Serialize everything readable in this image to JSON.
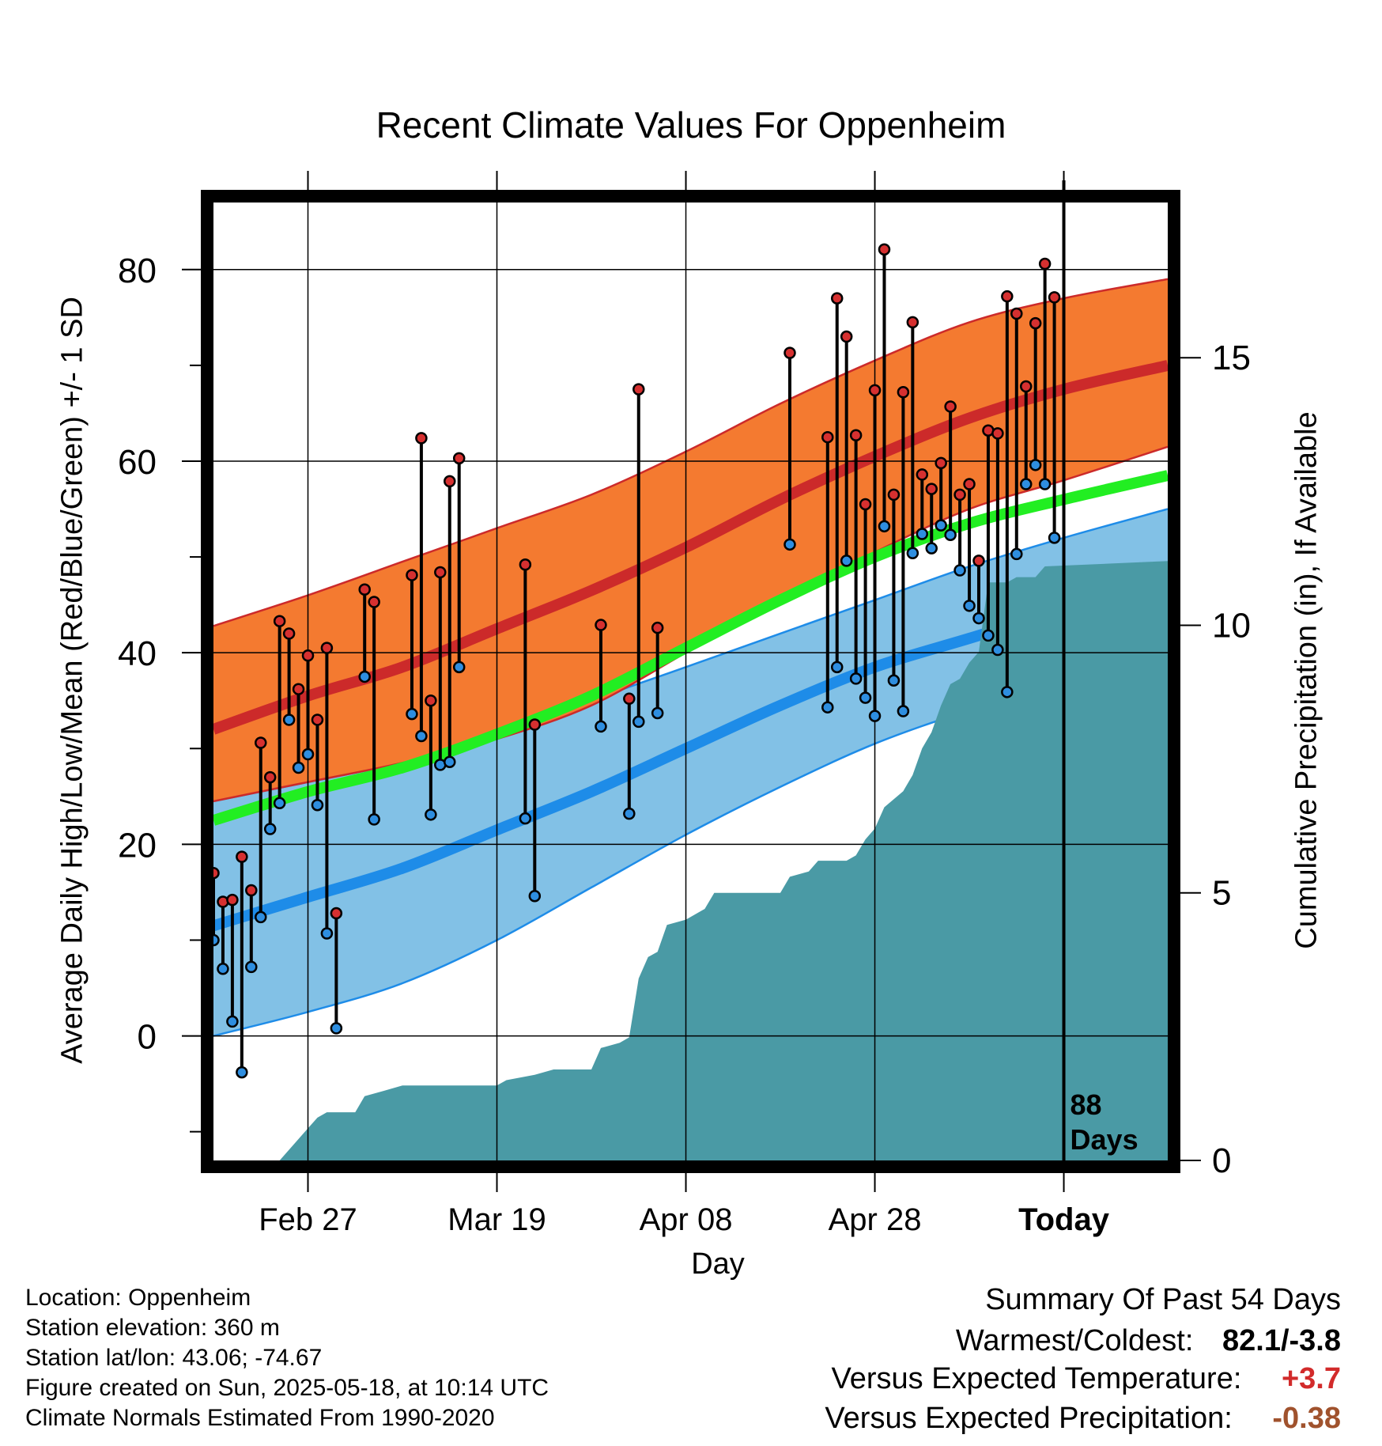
{
  "chart_data": {
    "type": "line",
    "title": "Recent Climate Values For Oppenheim",
    "xlabel": "Day",
    "ylabel": "Average Daily High/Low/Mean (Red/Blue/Green) +/- 1 SD",
    "y2label": "Cumulative Precipitation (in), If Available",
    "x_start_day": 0,
    "x_end_day": 101,
    "ylim": [
      -13,
      87
    ],
    "y2lim": [
      0,
      17.9
    ],
    "grid": true,
    "x_ticks": [
      {
        "day": 10,
        "label": "Feb 27"
      },
      {
        "day": 30,
        "label": "Mar 19"
      },
      {
        "day": 50,
        "label": "Apr 08"
      },
      {
        "day": 70,
        "label": "Apr 28"
      },
      {
        "day": 90,
        "label": "Today"
      }
    ],
    "y_ticks": [
      0,
      20,
      40,
      60,
      80
    ],
    "y_minor_ticks": [
      -10,
      10,
      30,
      50,
      70
    ],
    "y2_ticks": [
      0,
      5,
      10,
      15
    ],
    "today_day": 90,
    "today_label": [
      "88",
      "Days"
    ],
    "normals": {
      "days": [
        0,
        10,
        20,
        30,
        40,
        50,
        60,
        70,
        80,
        90,
        101
      ],
      "high_mean": [
        32,
        35.5,
        38.5,
        42.5,
        46.5,
        51,
        56,
        60.5,
        64.5,
        67.5,
        70
      ],
      "high_upper": [
        42.8,
        46,
        49.5,
        53,
        56.5,
        61,
        66,
        70.5,
        74.5,
        77,
        79
      ],
      "high_lower": [
        24.5,
        26.5,
        28.5,
        31,
        34.5,
        40,
        45.5,
        50.5,
        55,
        58,
        61.5
      ],
      "avg_mean": [
        22.5,
        25.5,
        28,
        31.5,
        35.5,
        40.5,
        45.5,
        50,
        53.5,
        56,
        58.5
      ],
      "low_mean": [
        11.5,
        14.5,
        17.5,
        21.5,
        25.5,
        30,
        34.5,
        38.5,
        41.5,
        44.5,
        47
      ],
      "low_upper": [
        24.5,
        26.5,
        28.5,
        31,
        35,
        38.5,
        42,
        45.5,
        49,
        52,
        55
      ],
      "low_lower": [
        0,
        2.5,
        5.5,
        10,
        15.5,
        21,
        26,
        30.5,
        34,
        37,
        40.5
      ]
    },
    "series": [
      {
        "name": "High",
        "points": [
          [
            0,
            17
          ],
          [
            1,
            14
          ],
          [
            2,
            14.2
          ],
          [
            3,
            18.7
          ],
          [
            4,
            15.2
          ],
          [
            5,
            30.6
          ],
          [
            6,
            27
          ],
          [
            7,
            43.3
          ],
          [
            8,
            42
          ],
          [
            9,
            36.2
          ],
          [
            10,
            39.7
          ],
          [
            11,
            33
          ],
          [
            12,
            40.5
          ],
          [
            13,
            12.8
          ],
          [
            16,
            46.6
          ],
          [
            17,
            45.3
          ],
          [
            21,
            48.1
          ],
          [
            22,
            62.4
          ],
          [
            23,
            35
          ],
          [
            24,
            48.4
          ],
          [
            25,
            57.9
          ],
          [
            26,
            60.3
          ],
          [
            33,
            49.2
          ],
          [
            34,
            32.5
          ],
          [
            41,
            42.9
          ],
          [
            44,
            35.2
          ],
          [
            45,
            67.5
          ],
          [
            47,
            42.6
          ],
          [
            61,
            71.3
          ],
          [
            65,
            62.5
          ],
          [
            66,
            77
          ],
          [
            67,
            73
          ],
          [
            68,
            62.7
          ],
          [
            69,
            55.5
          ],
          [
            70,
            67.4
          ],
          [
            71,
            82.1
          ],
          [
            72,
            56.5
          ],
          [
            73,
            67.2
          ],
          [
            74,
            74.5
          ],
          [
            75,
            58.6
          ],
          [
            76,
            57.1
          ],
          [
            77,
            59.8
          ],
          [
            78,
            65.7
          ],
          [
            79,
            56.5
          ],
          [
            80,
            57.6
          ],
          [
            81,
            49.6
          ],
          [
            82,
            63.2
          ],
          [
            83,
            62.9
          ],
          [
            84,
            77.2
          ],
          [
            85,
            75.4
          ],
          [
            86,
            67.8
          ],
          [
            87,
            74.4
          ],
          [
            88,
            80.6
          ],
          [
            89,
            77.1
          ]
        ]
      },
      {
        "name": "Low",
        "points": [
          [
            0,
            10
          ],
          [
            1,
            7
          ],
          [
            2,
            1.5
          ],
          [
            3,
            -3.8
          ],
          [
            4,
            7.2
          ],
          [
            5,
            12.4
          ],
          [
            6,
            21.6
          ],
          [
            7,
            24.3
          ],
          [
            8,
            33
          ],
          [
            9,
            28
          ],
          [
            10,
            29.4
          ],
          [
            11,
            24.1
          ],
          [
            12,
            10.7
          ],
          [
            13,
            0.8
          ],
          [
            16,
            37.5
          ],
          [
            17,
            22.6
          ],
          [
            21,
            33.6
          ],
          [
            22,
            31.3
          ],
          [
            23,
            23.1
          ],
          [
            24,
            28.3
          ],
          [
            25,
            28.6
          ],
          [
            26,
            38.5
          ],
          [
            33,
            22.7
          ],
          [
            34,
            14.6
          ],
          [
            41,
            32.3
          ],
          [
            44,
            23.2
          ],
          [
            45,
            32.8
          ],
          [
            47,
            33.7
          ],
          [
            61,
            51.3
          ],
          [
            65,
            34.3
          ],
          [
            66,
            38.5
          ],
          [
            67,
            49.6
          ],
          [
            68,
            37.3
          ],
          [
            69,
            35.3
          ],
          [
            70,
            33.4
          ],
          [
            71,
            53.2
          ],
          [
            72,
            37.1
          ],
          [
            73,
            33.9
          ],
          [
            74,
            50.4
          ],
          [
            75,
            52.4
          ],
          [
            76,
            50.9
          ],
          [
            77,
            53.3
          ],
          [
            78,
            52.3
          ],
          [
            79,
            48.6
          ],
          [
            80,
            44.9
          ],
          [
            81,
            43.6
          ],
          [
            82,
            41.8
          ],
          [
            83,
            40.3
          ],
          [
            84,
            35.9
          ],
          [
            85,
            50.3
          ],
          [
            86,
            57.6
          ],
          [
            87,
            59.6
          ],
          [
            88,
            57.6
          ],
          [
            89,
            52
          ]
        ]
      },
      {
        "name": "Cumulative Precipitation",
        "points": [
          [
            0,
            0
          ],
          [
            7,
            0
          ],
          [
            8,
            0.2
          ],
          [
            9,
            0.4
          ],
          [
            10,
            0.6
          ],
          [
            11,
            0.8
          ],
          [
            12,
            0.9
          ],
          [
            15,
            0.9
          ],
          [
            16,
            1.2
          ],
          [
            18,
            1.3
          ],
          [
            20,
            1.4
          ],
          [
            30,
            1.4
          ],
          [
            31,
            1.5
          ],
          [
            34,
            1.6
          ],
          [
            36,
            1.7
          ],
          [
            40,
            1.7
          ],
          [
            41,
            2.1
          ],
          [
            43,
            2.2
          ],
          [
            44,
            2.3
          ],
          [
            45,
            3.4
          ],
          [
            46,
            3.8
          ],
          [
            47,
            3.9
          ],
          [
            48,
            4.4
          ],
          [
            50,
            4.5
          ],
          [
            52,
            4.7
          ],
          [
            53,
            5
          ],
          [
            56,
            5
          ],
          [
            58,
            5
          ],
          [
            60,
            5
          ],
          [
            61,
            5.3
          ],
          [
            63,
            5.4
          ],
          [
            64,
            5.6
          ],
          [
            67,
            5.6
          ],
          [
            68,
            5.7
          ],
          [
            69,
            6
          ],
          [
            70,
            6.2
          ],
          [
            71,
            6.6
          ],
          [
            73,
            6.9
          ],
          [
            74,
            7.2
          ],
          [
            75,
            7.7
          ],
          [
            76,
            8
          ],
          [
            77,
            8.5
          ],
          [
            78,
            8.9
          ],
          [
            79,
            9
          ],
          [
            80,
            9.3
          ],
          [
            81,
            9.5
          ],
          [
            82,
            10.8
          ],
          [
            84,
            10.8
          ],
          [
            85,
            10.9
          ],
          [
            87,
            10.9
          ],
          [
            88,
            11.1
          ],
          [
            101,
            11.2
          ]
        ]
      }
    ],
    "colors": {
      "high_band": "#f47a30",
      "high_band_edge": "#cc2a2a",
      "high_mean": "#cc2a2a",
      "avg_mean": "#22ee22",
      "low_band": "#82c1e6",
      "low_band_edge": "#1e8ce8",
      "low_mean": "#1e8ce8",
      "precip": "#4a9aa5",
      "high_marker": "#d63030",
      "low_marker": "#2e8ee0"
    }
  },
  "info": {
    "location": "Location: Oppenheim",
    "elevation": "Station elevation: 360 m",
    "latlon": "Station lat/lon: 43.06; -74.67",
    "created": "Figure created on Sun, 2025-05-18, at 10:14 UTC",
    "normals": "Climate Normals Estimated From 1990-2020"
  },
  "summary": {
    "title": "Summary Of Past 54 Days",
    "warmest_label": "Warmest/Coldest:",
    "warmest_value": "82.1/-3.8",
    "temp_label": "Versus Expected Temperature:",
    "temp_value": "+3.7",
    "temp_color": "#d22b2b",
    "precip_label": "Versus Expected Precipitation:",
    "precip_value": "-0.38",
    "precip_color": "#a0522d"
  }
}
